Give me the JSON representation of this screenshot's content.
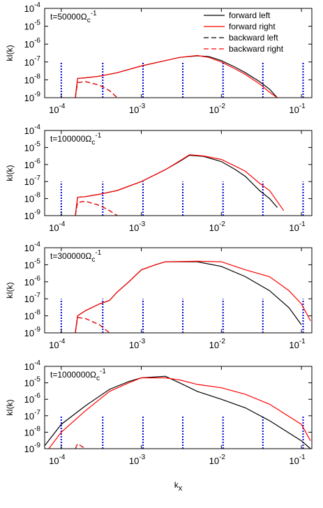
{
  "chart_data": [
    {
      "type": "line",
      "annotation": {
        "text": "t=50000Ω",
        "sub": "c",
        "sup": "-1"
      },
      "ylabel": "kI(k)",
      "legend": "upper right",
      "xscale": "log",
      "yscale": "log",
      "xlim": [
        6.2e-05,
        0.135
      ],
      "ylim": [
        1e-09,
        0.0001
      ],
      "xticks": [
        {
          "value": 0.0001,
          "label": "10",
          "exp": "-4"
        },
        {
          "value": 0.001,
          "label": "10",
          "exp": "-3"
        },
        {
          "value": 0.01,
          "label": "10",
          "exp": "-2"
        },
        {
          "value": 0.1,
          "label": "10",
          "exp": "-1"
        }
      ],
      "yticks": [
        {
          "value": 1e-09,
          "label": "10",
          "exp": "-9"
        },
        {
          "value": 1e-08,
          "label": "10",
          "exp": "-8"
        },
        {
          "value": 1e-07,
          "label": "10",
          "exp": "-7"
        },
        {
          "value": 1e-06,
          "label": "10",
          "exp": "-6"
        },
        {
          "value": 1e-05,
          "label": "10",
          "exp": "-5"
        },
        {
          "value": 0.0001,
          "label": "10",
          "exp": "-4"
        }
      ],
      "vlines": {
        "color": "#0000cc",
        "x": [
          0.0001,
          0.00033,
          0.00105,
          0.0033,
          0.0105,
          0.033,
          0.105
        ],
        "top": 1e-07
      },
      "series": [
        {
          "name": "forward left",
          "color": "#000000",
          "dash": false,
          "x": [
            0.00015,
            0.00016,
            0.0002,
            0.0003,
            0.0005,
            0.001,
            0.002,
            0.003,
            0.005,
            0.007,
            0.01,
            0.015,
            0.02,
            0.03,
            0.04,
            0.05
          ],
          "values": [
            1e-09,
            1.2e-08,
            1.3e-08,
            1.6e-08,
            2.5e-08,
            6e-08,
            1.2e-07,
            1.8e-07,
            2.2e-07,
            2e-07,
            1.2e-07,
            5e-08,
            2.5e-08,
            8e-09,
            3e-09,
            1e-09
          ]
        },
        {
          "name": "forward right",
          "color": "#ff0000",
          "dash": false,
          "x": [
            0.00015,
            0.00016,
            0.0002,
            0.0003,
            0.0005,
            0.001,
            0.002,
            0.003,
            0.005,
            0.007,
            0.01,
            0.015,
            0.02,
            0.03,
            0.04,
            0.05
          ],
          "values": [
            1e-09,
            1.2e-08,
            1.3e-08,
            1.6e-08,
            2.5e-08,
            6e-08,
            1.2e-07,
            1.8e-07,
            2.3e-07,
            1.8e-07,
            1e-07,
            4e-08,
            2e-08,
            6e-09,
            2e-09,
            1e-09
          ]
        },
        {
          "name": "backward left",
          "color": "#000000",
          "dash": true,
          "x": [
            0.00015,
            0.00016,
            0.0002,
            0.0003,
            0.0004,
            0.0005
          ],
          "values": [
            1e-09,
            7e-09,
            8e-09,
            5e-09,
            2.5e-09,
            1e-09
          ]
        },
        {
          "name": "backward right",
          "color": "#ff0000",
          "dash": true,
          "x": [
            0.00015,
            0.00016,
            0.0002,
            0.0003,
            0.0004,
            0.0005
          ],
          "values": [
            1e-09,
            7e-09,
            8e-09,
            5e-09,
            2.5e-09,
            1e-09
          ]
        }
      ]
    },
    {
      "type": "line",
      "annotation": {
        "text": "t=100000Ω",
        "sub": "c",
        "sup": "-1"
      },
      "ylabel": "kI(k)",
      "xscale": "log",
      "yscale": "log",
      "xlim": [
        6.2e-05,
        0.135
      ],
      "ylim": [
        1e-09,
        0.0001
      ],
      "xticks": [
        {
          "value": 0.0001,
          "label": "10",
          "exp": "-4"
        },
        {
          "value": 0.001,
          "label": "10",
          "exp": "-3"
        },
        {
          "value": 0.01,
          "label": "10",
          "exp": "-2"
        },
        {
          "value": 0.1,
          "label": "10",
          "exp": "-1"
        }
      ],
      "yticks": [
        {
          "value": 1e-09,
          "label": "10",
          "exp": "-9"
        },
        {
          "value": 1e-08,
          "label": "10",
          "exp": "-8"
        },
        {
          "value": 1e-07,
          "label": "10",
          "exp": "-7"
        },
        {
          "value": 1e-06,
          "label": "10",
          "exp": "-6"
        },
        {
          "value": 1e-05,
          "label": "10",
          "exp": "-5"
        },
        {
          "value": 0.0001,
          "label": "10",
          "exp": "-4"
        }
      ],
      "vlines": {
        "color": "#0000cc",
        "x": [
          0.0001,
          0.00033,
          0.00105,
          0.0033,
          0.0105,
          0.033,
          0.105
        ],
        "top": 1e-07
      },
      "series": [
        {
          "name": "forward left",
          "color": "#000000",
          "dash": false,
          "x": [
            0.00015,
            0.00016,
            0.0002,
            0.0003,
            0.0005,
            0.001,
            0.002,
            0.003,
            0.004,
            0.006,
            0.01,
            0.015,
            0.02,
            0.03,
            0.04,
            0.05
          ],
          "values": [
            1e-09,
            1.2e-08,
            1.3e-08,
            1.8e-08,
            3e-08,
            1e-07,
            5e-07,
            1.5e-06,
            3.5e-06,
            3e-06,
            1.5e-06,
            5e-07,
            2e-07,
            3e-08,
            1e-08,
            3e-09
          ]
        },
        {
          "name": "forward right",
          "color": "#ff0000",
          "dash": false,
          "x": [
            0.00015,
            0.00016,
            0.0002,
            0.0003,
            0.0005,
            0.001,
            0.002,
            0.003,
            0.004,
            0.006,
            0.01,
            0.015,
            0.02,
            0.03,
            0.04,
            0.06
          ],
          "values": [
            1e-09,
            1.2e-08,
            1.3e-08,
            1.8e-08,
            3e-08,
            1e-07,
            5e-07,
            1.6e-06,
            3.8e-06,
            3.2e-06,
            2e-06,
            8e-07,
            4e-07,
            8e-08,
            3e-08,
            2e-09
          ]
        },
        {
          "name": "backward left",
          "color": "#000000",
          "dash": true,
          "x": [
            0.00015,
            0.00016,
            0.0002,
            0.0003,
            0.0004,
            0.0005
          ],
          "values": [
            1e-09,
            6e-09,
            7e-09,
            4e-09,
            2e-09,
            1e-09
          ]
        },
        {
          "name": "backward right",
          "color": "#ff0000",
          "dash": true,
          "x": [
            0.00015,
            0.00016,
            0.0002,
            0.0003,
            0.0004,
            0.0005
          ],
          "values": [
            1e-09,
            6e-09,
            7e-09,
            4e-09,
            2e-09,
            1e-09
          ]
        }
      ]
    },
    {
      "type": "line",
      "annotation": {
        "text": "t=300000Ω",
        "sub": "c",
        "sup": "-1"
      },
      "ylabel": "kI(k)",
      "xscale": "log",
      "yscale": "log",
      "xlim": [
        6.2e-05,
        0.135
      ],
      "ylim": [
        1e-09,
        0.0001
      ],
      "xticks": [
        {
          "value": 0.0001,
          "label": "10",
          "exp": "-4"
        },
        {
          "value": 0.001,
          "label": "10",
          "exp": "-3"
        },
        {
          "value": 0.01,
          "label": "10",
          "exp": "-2"
        },
        {
          "value": 0.1,
          "label": "10",
          "exp": "-1"
        }
      ],
      "yticks": [
        {
          "value": 1e-09,
          "label": "10",
          "exp": "-9"
        },
        {
          "value": 1e-08,
          "label": "10",
          "exp": "-8"
        },
        {
          "value": 1e-07,
          "label": "10",
          "exp": "-7"
        },
        {
          "value": 1e-06,
          "label": "10",
          "exp": "-6"
        },
        {
          "value": 1e-05,
          "label": "10",
          "exp": "-5"
        },
        {
          "value": 0.0001,
          "label": "10",
          "exp": "-4"
        }
      ],
      "vlines": {
        "color": "#0000cc",
        "x": [
          0.0001,
          0.00033,
          0.00105,
          0.0033,
          0.0105,
          0.033,
          0.105
        ],
        "top": 1e-07
      },
      "series": [
        {
          "name": "forward left",
          "color": "#000000",
          "dash": false,
          "x": [
            0.00015,
            0.00016,
            0.0002,
            0.0003,
            0.0004,
            0.0005,
            0.0007,
            0.001,
            0.0015,
            0.002,
            0.005,
            0.01,
            0.02,
            0.04,
            0.07,
            0.1
          ],
          "values": [
            1e-09,
            1e-08,
            2e-08,
            5e-08,
            8e-08,
            2.5e-07,
            1e-06,
            5e-06,
            1e-05,
            1.5e-05,
            1.5e-05,
            8e-06,
            2e-06,
            3e-07,
            3e-08,
            3e-09
          ]
        },
        {
          "name": "forward right",
          "color": "#ff0000",
          "dash": false,
          "x": [
            0.00015,
            0.00016,
            0.0002,
            0.0003,
            0.0004,
            0.0005,
            0.0007,
            0.001,
            0.0015,
            0.002,
            0.005,
            0.01,
            0.02,
            0.04,
            0.07,
            0.1,
            0.13
          ],
          "values": [
            1e-09,
            1e-08,
            2e-08,
            5e-08,
            8e-08,
            2.5e-07,
            1e-06,
            5e-06,
            1e-05,
            1.5e-05,
            1.6e-05,
            1.5e-05,
            5e-06,
            2e-06,
            3e-07,
            5e-08,
            5e-09
          ]
        },
        {
          "name": "backward left",
          "color": "#000000",
          "dash": true,
          "x": [
            0.00015,
            0.00016,
            0.0002,
            0.0003,
            0.0004
          ],
          "values": [
            1e-09,
            8e-09,
            7e-09,
            3e-09,
            1e-09
          ]
        },
        {
          "name": "backward right",
          "color": "#ff0000",
          "dash": true,
          "x": [
            0.00015,
            0.00016,
            0.0002,
            0.0003,
            0.0004
          ],
          "values": [
            1e-09,
            8e-09,
            7e-09,
            3e-09,
            1e-09
          ]
        }
      ]
    },
    {
      "type": "line",
      "annotation": {
        "text": "t=1000000Ω",
        "sub": "c",
        "sup": "-1"
      },
      "ylabel": "kI(k)",
      "xlabel": {
        "text": "k",
        "sub": "x"
      },
      "xscale": "log",
      "yscale": "log",
      "xlim": [
        6.2e-05,
        0.135
      ],
      "ylim": [
        1e-09,
        0.0001
      ],
      "xticks": [
        {
          "value": 0.0001,
          "label": "10",
          "exp": "-4"
        },
        {
          "value": 0.001,
          "label": "10",
          "exp": "-3"
        },
        {
          "value": 0.01,
          "label": "10",
          "exp": "-2"
        },
        {
          "value": 0.1,
          "label": "10",
          "exp": "-1"
        }
      ],
      "yticks": [
        {
          "value": 1e-09,
          "label": "10",
          "exp": "-9"
        },
        {
          "value": 1e-08,
          "label": "10",
          "exp": "-8"
        },
        {
          "value": 1e-07,
          "label": "10",
          "exp": "-7"
        },
        {
          "value": 1e-06,
          "label": "10",
          "exp": "-6"
        },
        {
          "value": 1e-05,
          "label": "10",
          "exp": "-5"
        },
        {
          "value": 0.0001,
          "label": "10",
          "exp": "-4"
        }
      ],
      "vlines": {
        "color": "#0000cc",
        "x": [
          0.0001,
          0.00033,
          0.00105,
          0.0033,
          0.0105,
          0.033,
          0.105
        ],
        "top": 1e-07
      },
      "series": [
        {
          "name": "forward left",
          "color": "#000000",
          "dash": false,
          "x": [
            6.2e-05,
            0.0001,
            0.0002,
            0.0004,
            0.0007,
            0.001,
            0.002,
            0.003,
            0.005,
            0.01,
            0.02,
            0.04,
            0.1,
            0.13
          ],
          "values": [
            1.5e-09,
            3e-08,
            4e-07,
            4e-06,
            1.2e-05,
            2e-05,
            2.5e-05,
            1e-05,
            3e-06,
            1e-06,
            3e-07,
            5e-08,
            3e-09,
            1e-09
          ]
        },
        {
          "name": "forward right",
          "color": "#ff0000",
          "dash": false,
          "x": [
            7e-05,
            0.0001,
            0.0002,
            0.0004,
            0.0007,
            0.001,
            0.002,
            0.003,
            0.005,
            0.01,
            0.02,
            0.04,
            0.1,
            0.13
          ],
          "values": [
            1e-09,
            1e-08,
            2e-07,
            3e-06,
            1e-05,
            2e-05,
            2e-05,
            1.5e-05,
            8e-06,
            5e-06,
            2e-06,
            5e-07,
            3e-08,
            3e-09
          ]
        },
        {
          "name": "backward left",
          "color": "#000000",
          "dash": true,
          "x": [
            0.00015,
            0.00016,
            0.0002
          ],
          "values": [
            1e-09,
            2e-09,
            1e-09
          ]
        },
        {
          "name": "backward right",
          "color": "#ff0000",
          "dash": true,
          "x": [
            0.00015,
            0.00016,
            0.0002
          ],
          "values": [
            1e-09,
            2e-09,
            1e-09
          ]
        }
      ]
    }
  ]
}
